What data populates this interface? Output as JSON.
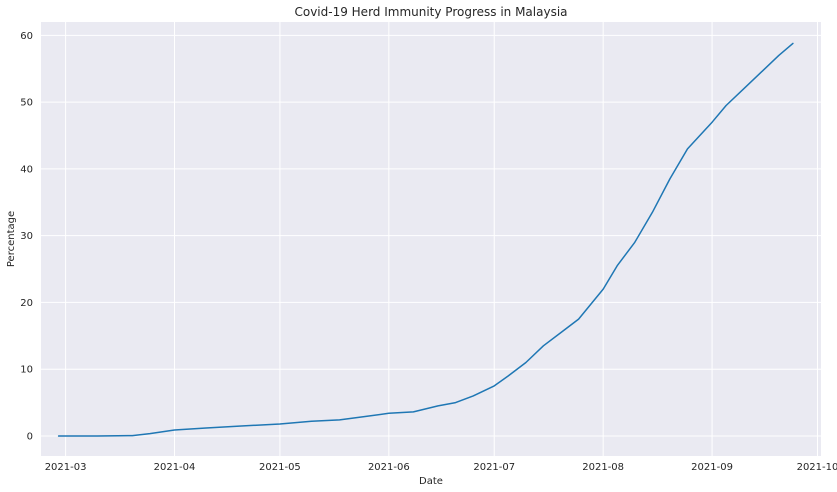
{
  "chart_data": {
    "type": "line",
    "title": "Covid-19 Herd Immunity Progress in Malaysia",
    "xlabel": "Date",
    "ylabel": "Percentage",
    "x_axis_type": "date",
    "xlim": [
      "2021-02-22",
      "2021-10-02"
    ],
    "ylim": [
      -3,
      62
    ],
    "x_ticks": [
      "2021-03-01",
      "2021-04-01",
      "2021-05-01",
      "2021-06-01",
      "2021-07-01",
      "2021-08-01",
      "2021-09-01",
      "2021-10-01"
    ],
    "x_tick_labels": [
      "2021-03",
      "2021-04",
      "2021-05",
      "2021-06",
      "2021-07",
      "2021-08",
      "2021-09",
      "2021-10"
    ],
    "y_ticks": [
      0,
      10,
      20,
      30,
      40,
      50,
      60
    ],
    "y_tick_labels": [
      "0",
      "10",
      "20",
      "30",
      "40",
      "50",
      "60"
    ],
    "grid": true,
    "background_color": "#eaeaf2",
    "grid_color": "#ffffff",
    "series": [
      {
        "color": "#1f77b4",
        "x": [
          "2021-02-27",
          "2021-03-10",
          "2021-03-20",
          "2021-03-25",
          "2021-04-01",
          "2021-04-10",
          "2021-04-20",
          "2021-05-01",
          "2021-05-10",
          "2021-05-18",
          "2021-05-25",
          "2021-06-01",
          "2021-06-08",
          "2021-06-15",
          "2021-06-20",
          "2021-06-25",
          "2021-07-01",
          "2021-07-05",
          "2021-07-10",
          "2021-07-15",
          "2021-07-20",
          "2021-07-25",
          "2021-08-01",
          "2021-08-05",
          "2021-08-10",
          "2021-08-15",
          "2021-08-20",
          "2021-08-25",
          "2021-09-01",
          "2021-09-05",
          "2021-09-10",
          "2021-09-15",
          "2021-09-20",
          "2021-09-24"
        ],
        "y": [
          0,
          0,
          0.05,
          0.35,
          0.9,
          1.2,
          1.5,
          1.8,
          2.2,
          2.4,
          2.9,
          3.4,
          3.6,
          4.5,
          5.0,
          6.0,
          7.5,
          9.0,
          11.0,
          13.5,
          15.5,
          17.5,
          22.0,
          25.5,
          29.0,
          33.5,
          38.5,
          43.0,
          47.0,
          49.5,
          52.0,
          54.5,
          57.0,
          58.8
        ]
      }
    ]
  }
}
